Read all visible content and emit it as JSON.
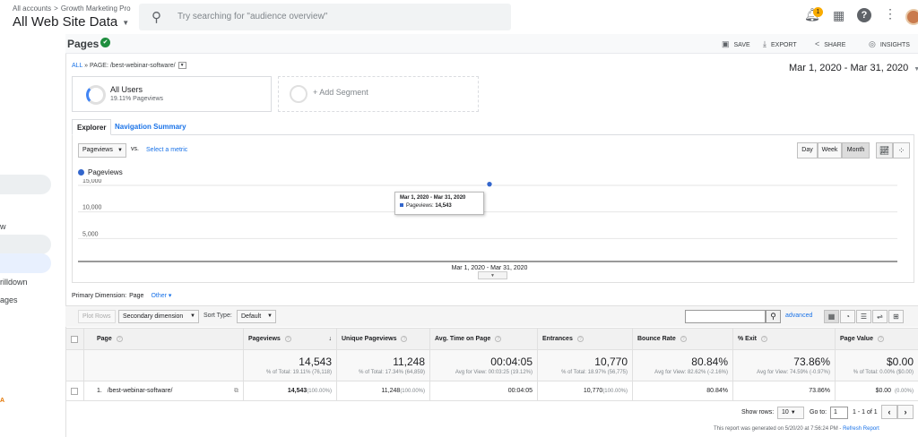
{
  "header": {
    "breadcrumb_root": "All accounts",
    "breadcrumb_sep": ">",
    "breadcrumb_property": "Growth Marketing Pro",
    "account_view": "All Web Site Data",
    "search_placeholder": "Try searching for \"audience overview\"",
    "notification_count": "1",
    "help_glyph": "?"
  },
  "left_nav": {
    "items": [
      "w",
      "rilldown",
      "ages",
      "A"
    ]
  },
  "page": {
    "title": "Pages",
    "toolbar": {
      "save": "SAVE",
      "export": "EXPORT",
      "share": "SHARE",
      "insights": "INSIGHTS"
    },
    "breadcrumb_all": "ALL",
    "breadcrumb_sep": "»",
    "breadcrumb_page": "PAGE: /best-webinar-software/",
    "date_range": "Mar 1, 2020 - Mar 31, 2020"
  },
  "segments": {
    "seg1_title": "All Users",
    "seg1_sub": "19.11% Pageviews",
    "seg1_fraction": 0.1911,
    "add_segment": "+ Add Segment"
  },
  "tabs": {
    "explorer": "Explorer",
    "navigation_summary": "Navigation Summary"
  },
  "chart_controls": {
    "metric": "Pageviews",
    "vs": "vs.",
    "select_metric": "Select a metric",
    "day": "Day",
    "week": "Week",
    "month": "Month"
  },
  "chart_data": {
    "type": "scatter",
    "series": [
      {
        "name": "Pageviews",
        "values": [
          14543
        ]
      }
    ],
    "categories": [
      "Mar 1, 2020 - Mar 31, 2020"
    ],
    "y_ticks": [
      "15,000",
      "10,000",
      "5,000"
    ],
    "y_tick_values": [
      15000,
      10000,
      5000
    ],
    "ylim": [
      0,
      15500
    ],
    "x_label": "Mar 1, 2020 - Mar 31, 2020",
    "tooltip_title": "Mar 1, 2020 - Mar 31, 2020",
    "tooltip_label": "Pageviews:",
    "tooltip_value": "14,543",
    "grid": true,
    "legend": "top-left",
    "color": "#3366cc"
  },
  "primary_dimension": {
    "label": "Primary Dimension:",
    "value": "Page",
    "other": "Other"
  },
  "table_tools": {
    "plot_rows": "Plot Rows",
    "secondary_dimension": "Secondary dimension",
    "sort_label": "Sort Type:",
    "sort_value": "Default",
    "advanced": "advanced"
  },
  "table": {
    "headers": [
      "Page",
      "Pageviews",
      "Unique Pageviews",
      "Avg. Time on Page",
      "Entrances",
      "Bounce Rate",
      "% Exit",
      "Page Value"
    ],
    "totals": [
      {
        "big": "14,543",
        "sub": "% of Total: 19.11% (76,118)"
      },
      {
        "big": "11,248",
        "sub": "% of Total: 17.34% (64,859)"
      },
      {
        "big": "00:04:05",
        "sub": "Avg for View: 00:03:25 (19.12%)"
      },
      {
        "big": "10,770",
        "sub": "% of Total: 18.97% (56,775)"
      },
      {
        "big": "80.84%",
        "sub": "Avg for View: 82.62% (-2.16%)"
      },
      {
        "big": "73.86%",
        "sub": "Avg for View: 74.59% (-0.97%)"
      },
      {
        "big": "$0.00",
        "sub": "% of Total: 0.00% ($0.00)"
      }
    ],
    "row": {
      "index": "1.",
      "page": "/best-webinar-software/",
      "pageviews": "14,543",
      "pageviews_pct": "(100.00%)",
      "unique": "11,248",
      "unique_pct": "(100.00%)",
      "avg_time": "00:04:05",
      "entrances": "10,770",
      "entrances_pct": "(100.00%)",
      "bounce": "80.84%",
      "exit": "73.86%",
      "value": "$0.00",
      "value_pct": "(0.00%)"
    }
  },
  "footer": {
    "show_rows": "Show rows:",
    "rows_value": "10",
    "goto": "Go to:",
    "goto_value": "1",
    "pager": "1 - 1 of 1",
    "generated": "This report was generated on 5/20/20 at 7:56:24 PM -",
    "refresh": "Refresh Report"
  },
  "colors": {
    "accent": "#1a73e8",
    "series": "#3366cc",
    "verified": "#1e8e3e",
    "badge": "#f9ab00"
  }
}
